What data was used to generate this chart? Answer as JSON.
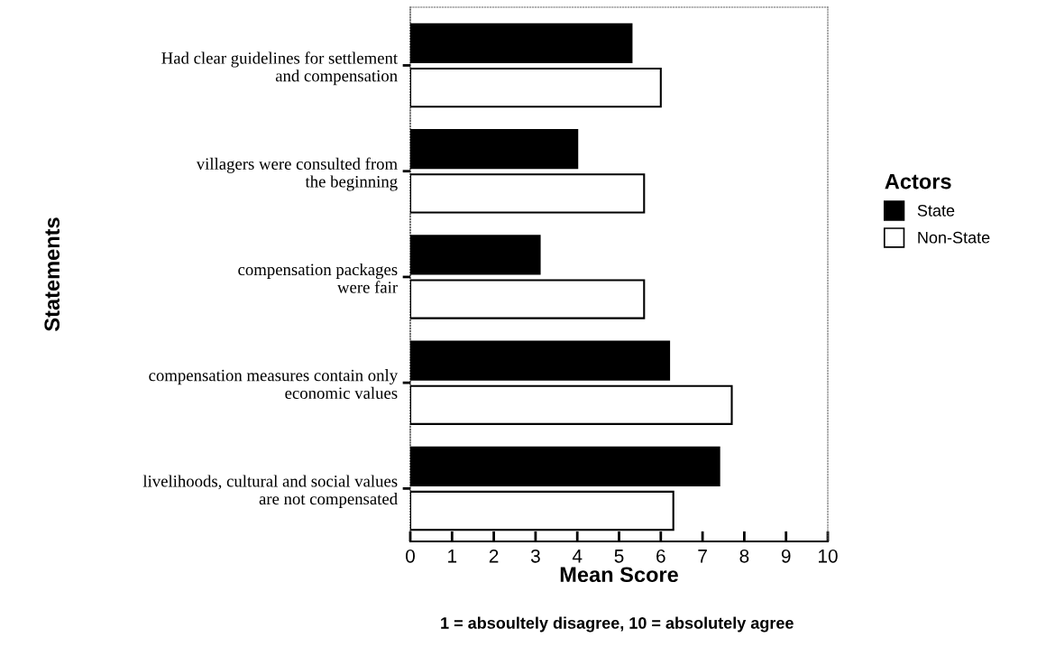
{
  "chart_data": {
    "type": "bar",
    "orientation": "horizontal",
    "categories": [
      "Had clear guidelines for settlement\nand compensation",
      "villagers were consulted from\nthe beginning",
      "compensation packages\nwere fair",
      "compensation measures contain only\neconomic values",
      "livelihoods, cultural and social values\nare not compensated"
    ],
    "series": [
      {
        "name": "State",
        "color": "#000000",
        "values": [
          5.3,
          4.0,
          3.1,
          6.2,
          7.4
        ]
      },
      {
        "name": "Non-State",
        "color": "#ffffff",
        "values": [
          6.0,
          5.6,
          5.6,
          7.7,
          6.3
        ]
      }
    ],
    "xlim": [
      0,
      10
    ],
    "xticks": [
      0,
      1,
      2,
      3,
      4,
      5,
      6,
      7,
      8,
      9,
      10
    ],
    "xlabel": "Mean Score",
    "ylabel": "Statements",
    "legend_title": "Actors",
    "legend": "right",
    "annotations": [
      "1 = absoultely disagree, 10 = absolutely agree"
    ]
  }
}
